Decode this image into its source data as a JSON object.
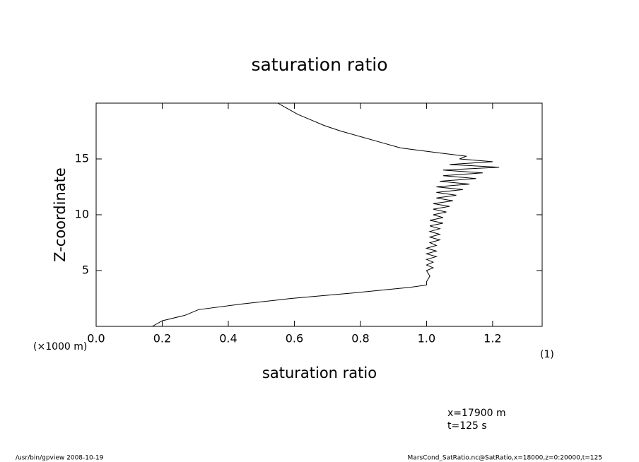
{
  "chart_data": {
    "type": "line",
    "title": "saturation ratio",
    "x_label": "saturation ratio",
    "y_label": "Z-coordinate",
    "x_unit": "(1)",
    "y_unit": "(×1000 m)",
    "annotations": [
      "x=17900 m",
      "t=125 s"
    ],
    "footer_left": "/usr/bin/gpview   2008-10-19",
    "footer_right": "MarsCond_SatRatio.nc@SatRatio,x=18000,z=0:20000,t=125",
    "color": "#000000",
    "xlim": [
      0,
      1.35
    ],
    "ylim": [
      0,
      20
    ],
    "xticks": [
      {
        "value": 0,
        "label": "0.0"
      },
      0.2,
      0.4,
      0.6,
      0.8,
      {
        "value": 1,
        "label": "1.0"
      },
      1.2
    ],
    "yticks": [
      5,
      10,
      15
    ],
    "x": [
      0.17,
      0.2,
      0.27,
      0.31,
      0.44,
      0.59,
      0.78,
      0.95,
      1.0,
      1.0,
      1.01,
      1.0,
      1.02,
      1.0,
      1.02,
      1.0,
      1.03,
      1.0,
      1.03,
      1.0,
      1.03,
      1.01,
      1.04,
      1.01,
      1.04,
      1.01,
      1.04,
      1.01,
      1.05,
      1.01,
      1.05,
      1.02,
      1.06,
      1.02,
      1.07,
      1.02,
      1.08,
      1.03,
      1.09,
      1.03,
      1.11,
      1.03,
      1.13,
      1.04,
      1.15,
      1.05,
      1.17,
      1.05,
      1.22,
      1.07,
      1.2,
      1.1,
      1.12,
      1.05,
      0.97,
      0.92,
      0.86,
      0.8,
      0.74,
      0.69,
      0.65,
      0.61,
      0.58,
      0.55
    ],
    "values": [
      0,
      0.5,
      1.0,
      1.5,
      2.0,
      2.5,
      3.0,
      3.5,
      3.7,
      4.0,
      4.5,
      5.0,
      5.25,
      5.5,
      5.75,
      6.0,
      6.25,
      6.5,
      6.75,
      7.0,
      7.25,
      7.5,
      7.75,
      8.0,
      8.25,
      8.5,
      8.75,
      9.0,
      9.25,
      9.5,
      9.75,
      10.0,
      10.25,
      10.5,
      10.75,
      11.0,
      11.25,
      11.5,
      11.75,
      12.0,
      12.25,
      12.5,
      12.75,
      13.0,
      13.25,
      13.5,
      13.75,
      14.0,
      14.25,
      14.5,
      14.75,
      15.0,
      15.25,
      15.5,
      15.8,
      16.0,
      16.5,
      17.0,
      17.5,
      18.0,
      18.5,
      19.0,
      19.5,
      20.0
    ]
  }
}
